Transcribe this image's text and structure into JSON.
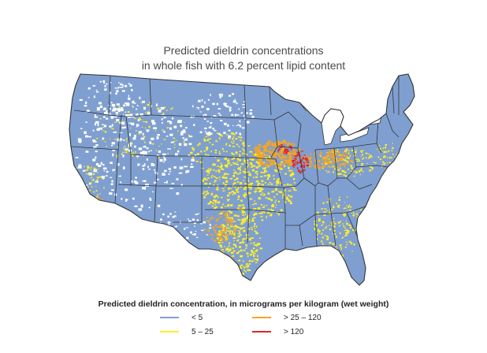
{
  "title": {
    "line1": "Predicted dieldrin concentrations",
    "line2": "in whole fish with 6.2 percent lipid content"
  },
  "legend": {
    "title": "Predicted dieldrin concentration, in micrograms per kilogram (wet weight)",
    "items": [
      {
        "label": "< 5",
        "color": "#7f9fd0"
      },
      {
        "label": "5 – 25",
        "color": "#ffef2a"
      },
      {
        "label": "> 25 – 120",
        "color": "#f5a623"
      },
      {
        "label": "> 120",
        "color": "#e0262b"
      }
    ]
  },
  "colors": {
    "land_base": "#7f9fd0",
    "unmapped": "#ffffff",
    "outline": "#333333"
  }
}
